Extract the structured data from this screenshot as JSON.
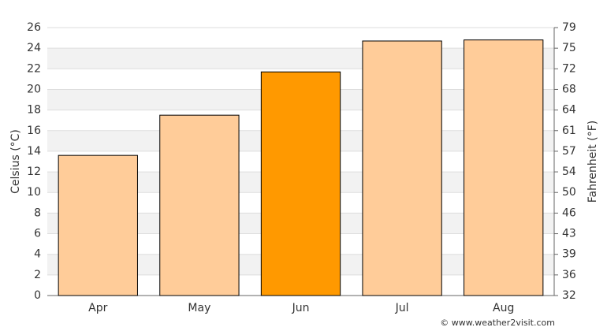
{
  "chart_data": {
    "type": "bar",
    "categories": [
      "Apr",
      "May",
      "Jun",
      "Jul",
      "Aug"
    ],
    "values": [
      13.6,
      17.5,
      21.7,
      24.7,
      24.8
    ],
    "colors": [
      "#ffcc99",
      "#ffcc99",
      "#ff9900",
      "#ffcc99",
      "#ffcc99"
    ],
    "ylabel": "Celsius (°C)",
    "y2label": "Fahrenheit (°F)",
    "ylim": [
      0,
      26
    ],
    "yticks": [
      0,
      2,
      4,
      6,
      8,
      10,
      12,
      14,
      16,
      18,
      20,
      22,
      24,
      26
    ],
    "y2lim": [
      32,
      78.8
    ],
    "y2ticks": [
      32,
      {
        "value": 35.6,
        "label": "36"
      },
      {
        "value": 39.2,
        "label": "39"
      },
      {
        "value": 42.8,
        "label": "43"
      },
      {
        "value": 46.4,
        "label": "46"
      },
      50,
      {
        "value": 53.6,
        "label": "54"
      },
      {
        "value": 57.2,
        "label": "57"
      },
      {
        "value": 60.8,
        "label": "61"
      },
      {
        "value": 64.4,
        "label": "64"
      },
      68,
      {
        "value": 71.6,
        "label": "72"
      },
      {
        "value": 75.2,
        "label": "75"
      },
      {
        "value": 78.8,
        "label": "79"
      }
    ],
    "grid": true,
    "credit": "© www.weather2visit.com"
  }
}
